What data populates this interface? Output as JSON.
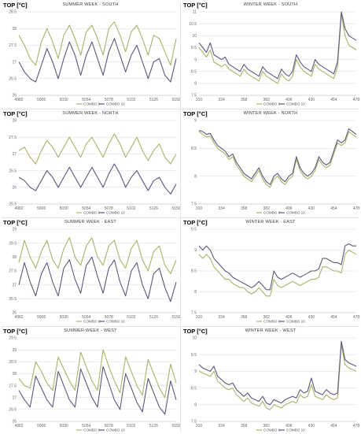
{
  "chart_data": [
    {
      "type": "line",
      "ylabel": "TOP [°C]",
      "title": "SUMMER WEEK - SOUTH",
      "xticks": [
        "4982",
        "5006",
        "5030",
        "5054",
        "5078",
        "5102",
        "5126",
        "5150"
      ],
      "ylim": [
        26,
        28.5
      ],
      "yticks": [
        "26",
        "26.5",
        "27",
        "27.5",
        "28",
        "28.5"
      ],
      "x": [
        4982,
        4988,
        4994,
        5000,
        5006,
        5012,
        5018,
        5024,
        5030,
        5036,
        5042,
        5048,
        5054,
        5060,
        5066,
        5072,
        5078,
        5084,
        5090,
        5096,
        5102,
        5108,
        5114,
        5120,
        5126,
        5132,
        5138,
        5144,
        5150
      ],
      "series": [
        {
          "name": "COMBO 9",
          "color": "#a9b36a",
          "values": [
            27.8,
            27.5,
            27.1,
            26.9,
            27.6,
            28.0,
            27.6,
            27.1,
            27.8,
            28.1,
            27.7,
            27.2,
            27.9,
            28.1,
            27.7,
            27.2,
            28.0,
            28.2,
            27.8,
            27.3,
            27.9,
            28.1,
            27.7,
            27.2,
            27.8,
            27.7,
            27.3,
            26.9,
            27.7
          ]
        },
        {
          "name": "COMBO 10",
          "color": "#5a587c",
          "values": [
            27.0,
            26.7,
            26.5,
            26.4,
            26.9,
            27.4,
            27.0,
            26.5,
            27.1,
            27.6,
            27.2,
            26.6,
            27.2,
            27.6,
            27.1,
            26.6,
            27.3,
            27.7,
            27.2,
            26.7,
            27.2,
            27.5,
            27.0,
            26.5,
            27.0,
            27.1,
            26.6,
            26.4,
            27.1
          ]
        }
      ],
      "legend_position": "bottom"
    },
    {
      "type": "line",
      "ylabel": "TOP [°C]",
      "title": "WINTER WEEK - SOUTH",
      "xticks": [
        "310",
        "334",
        "358",
        "382",
        "406",
        "430",
        "454",
        "478"
      ],
      "ylim": [
        7.5,
        11
      ],
      "yticks": [
        "7.5",
        "8",
        "8.5",
        "9",
        "9.5",
        "10",
        "10.5",
        "11"
      ],
      "x": [
        310,
        314,
        318,
        322,
        326,
        330,
        334,
        338,
        342,
        346,
        350,
        354,
        358,
        362,
        366,
        370,
        374,
        378,
        382,
        386,
        390,
        394,
        398,
        402,
        406,
        410,
        414,
        418,
        422,
        426,
        430,
        434,
        438,
        442,
        446,
        450,
        454,
        458,
        462,
        466,
        470,
        474,
        478
      ],
      "series": [
        {
          "name": "COMBO 9",
          "color": "#a9b36a",
          "values": [
            9.5,
            9.3,
            9.1,
            9.4,
            8.9,
            8.8,
            8.7,
            8.8,
            8.6,
            8.5,
            8.4,
            8.3,
            8.6,
            8.4,
            8.3,
            8.2,
            8.1,
            8.5,
            8.3,
            8.2,
            8.1,
            8.0,
            8.4,
            8.2,
            8.1,
            8.3,
            9.0,
            8.7,
            8.5,
            8.4,
            8.3,
            8.8,
            8.6,
            8.5,
            8.4,
            8.3,
            8.2,
            8.7,
            10.9,
            10.0,
            9.6,
            9.5,
            9.4
          ]
        },
        {
          "name": "COMBO 10",
          "color": "#5a587c",
          "values": [
            9.7,
            9.5,
            9.3,
            9.7,
            9.2,
            9.1,
            9.0,
            9.1,
            8.8,
            8.7,
            8.6,
            8.5,
            8.8,
            8.6,
            8.5,
            8.4,
            8.3,
            8.7,
            8.5,
            8.4,
            8.3,
            8.2,
            8.6,
            8.4,
            8.3,
            8.5,
            9.2,
            8.9,
            8.7,
            8.6,
            8.5,
            9.0,
            8.8,
            8.7,
            8.6,
            8.5,
            8.4,
            8.9,
            11.0,
            10.3,
            10.0,
            9.9,
            9.8
          ]
        }
      ],
      "legend_position": "bottom"
    },
    {
      "type": "line",
      "ylabel": "TOP [°C]",
      "title": "SUMMER WEEK - NORTH",
      "xticks": [
        "4982",
        "5006",
        "5030",
        "5054",
        "5078",
        "5102",
        "5126",
        "5150"
      ],
      "ylim": [
        25.5,
        28
      ],
      "yticks": [
        "25.5",
        "26",
        "26.5",
        "27",
        "27.5",
        "28"
      ],
      "x": [
        4982,
        4988,
        4994,
        5000,
        5006,
        5012,
        5018,
        5024,
        5030,
        5036,
        5042,
        5048,
        5054,
        5060,
        5066,
        5072,
        5078,
        5084,
        5090,
        5096,
        5102,
        5108,
        5114,
        5120,
        5126,
        5132,
        5138,
        5144,
        5150
      ],
      "series": [
        {
          "name": "COMBO 9",
          "color": "#a9b36a",
          "values": [
            27.1,
            27.2,
            26.9,
            26.7,
            27.1,
            27.4,
            27.2,
            26.9,
            27.2,
            27.5,
            27.2,
            26.9,
            27.3,
            27.5,
            27.2,
            26.9,
            27.3,
            27.6,
            27.3,
            26.9,
            27.2,
            27.5,
            27.1,
            26.8,
            27.1,
            27.3,
            26.9,
            26.7,
            27.0
          ]
        },
        {
          "name": "COMBO 10",
          "color": "#5a587c",
          "values": [
            26.3,
            26.2,
            26.0,
            25.9,
            26.2,
            26.5,
            26.3,
            26.0,
            26.3,
            26.6,
            26.3,
            26.0,
            26.3,
            26.6,
            26.3,
            26.0,
            26.4,
            26.7,
            26.4,
            26.0,
            26.3,
            26.5,
            26.2,
            25.9,
            26.2,
            26.3,
            26.0,
            25.8,
            26.1
          ]
        }
      ],
      "legend_position": "bottom"
    },
    {
      "type": "line",
      "ylabel": "TOP [°C]",
      "title": "WINTER WEEK - NORTH",
      "xticks": [
        "310",
        "334",
        "358",
        "382",
        "406",
        "430",
        "454",
        "478"
      ],
      "ylim": [
        7.5,
        9
      ],
      "yticks": [
        "7.5",
        "8",
        "8.5",
        "9"
      ],
      "x": [
        310,
        314,
        318,
        322,
        326,
        330,
        334,
        338,
        342,
        346,
        350,
        354,
        358,
        362,
        366,
        370,
        374,
        378,
        382,
        386,
        390,
        394,
        398,
        402,
        406,
        410,
        414,
        418,
        422,
        426,
        430,
        434,
        438,
        442,
        446,
        450,
        454,
        458,
        462,
        466,
        470,
        474,
        478
      ],
      "series": [
        {
          "name": "COMBO 9",
          "color": "#a9b36a",
          "values": [
            8.8,
            8.75,
            8.7,
            8.72,
            8.6,
            8.5,
            8.45,
            8.4,
            8.3,
            8.35,
            8.2,
            8.1,
            8.0,
            7.95,
            7.9,
            8.0,
            8.1,
            7.95,
            7.85,
            7.8,
            7.95,
            8.0,
            7.9,
            7.85,
            7.95,
            8.0,
            8.3,
            8.1,
            8.0,
            7.95,
            8.0,
            8.1,
            8.3,
            8.2,
            8.15,
            8.2,
            8.4,
            8.6,
            8.55,
            8.6,
            8.8,
            8.75,
            8.7
          ]
        },
        {
          "name": "COMBO 10",
          "color": "#5a587c",
          "values": [
            8.82,
            8.8,
            8.75,
            8.77,
            8.65,
            8.55,
            8.5,
            8.45,
            8.35,
            8.4,
            8.25,
            8.15,
            8.05,
            8.0,
            7.95,
            8.05,
            8.15,
            8.0,
            7.9,
            7.85,
            8.0,
            8.05,
            7.95,
            7.9,
            8.0,
            8.05,
            8.35,
            8.15,
            8.05,
            8.0,
            8.05,
            8.15,
            8.35,
            8.25,
            8.2,
            8.25,
            8.45,
            8.65,
            8.6,
            8.65,
            8.85,
            8.8,
            8.75
          ]
        }
      ],
      "legend_position": "bottom"
    },
    {
      "type": "line",
      "ylabel": "TOP [°C]",
      "title": "SUMMER WEEK - EAST",
      "xticks": [
        "4982",
        "5006",
        "5030",
        "5054",
        "5078",
        "5102",
        "5126",
        "5150"
      ],
      "ylim": [
        26,
        29
      ],
      "yticks": [
        "26",
        "26.5",
        "27",
        "27.5",
        "28",
        "28.5",
        "29"
      ],
      "x": [
        4982,
        4988,
        4994,
        5000,
        5006,
        5012,
        5018,
        5024,
        5030,
        5036,
        5042,
        5048,
        5054,
        5060,
        5066,
        5072,
        5078,
        5084,
        5090,
        5096,
        5102,
        5108,
        5114,
        5120,
        5126,
        5132,
        5138,
        5144,
        5150
      ],
      "series": [
        {
          "name": "COMBO 9",
          "color": "#a9b36a",
          "values": [
            27.8,
            28.6,
            28.0,
            27.6,
            28.2,
            28.6,
            27.9,
            27.6,
            28.3,
            28.7,
            28.0,
            27.7,
            28.4,
            28.7,
            28.0,
            27.7,
            28.4,
            28.6,
            27.9,
            27.6,
            28.3,
            28.6,
            27.9,
            27.5,
            28.2,
            28.4,
            27.7,
            27.4,
            27.9
          ]
        },
        {
          "name": "COMBO 10",
          "color": "#5a587c",
          "values": [
            27.0,
            27.8,
            27.1,
            26.6,
            27.4,
            27.8,
            27.1,
            26.6,
            27.6,
            27.9,
            27.2,
            26.7,
            27.7,
            28.0,
            27.3,
            26.7,
            27.6,
            27.9,
            27.1,
            26.6,
            27.5,
            27.8,
            27.0,
            26.5,
            27.4,
            27.6,
            26.9,
            26.4,
            27.1
          ]
        }
      ],
      "legend_position": "bottom"
    },
    {
      "type": "line",
      "ylabel": "TOP [°C]",
      "title": "WINTER WEEK - EAST",
      "xticks": [
        "310",
        "334",
        "358",
        "382",
        "406",
        "430",
        "454",
        "478"
      ],
      "ylim": [
        7.5,
        9.5
      ],
      "yticks": [
        "7.5",
        "8",
        "8.5",
        "9",
        "9.5"
      ],
      "x": [
        310,
        314,
        318,
        322,
        326,
        330,
        334,
        338,
        342,
        346,
        350,
        354,
        358,
        362,
        366,
        370,
        374,
        378,
        382,
        386,
        390,
        394,
        398,
        402,
        406,
        410,
        414,
        418,
        422,
        426,
        430,
        434,
        438,
        442,
        446,
        450,
        454,
        458,
        462,
        466,
        470,
        474,
        478
      ],
      "series": [
        {
          "name": "COMBO 9",
          "color": "#a9b36a",
          "values": [
            8.9,
            8.8,
            8.9,
            8.8,
            8.6,
            8.5,
            8.4,
            8.3,
            8.3,
            8.2,
            8.15,
            8.1,
            8.1,
            8.0,
            7.95,
            8.0,
            8.1,
            8.0,
            7.9,
            7.9,
            8.3,
            8.15,
            8.1,
            8.15,
            8.2,
            8.25,
            8.2,
            8.15,
            8.2,
            8.25,
            8.3,
            8.3,
            8.35,
            8.6,
            8.6,
            8.55,
            8.5,
            8.5,
            8.45,
            8.9,
            9.0,
            8.95,
            8.9
          ]
        },
        {
          "name": "COMBO 10",
          "color": "#5a587c",
          "values": [
            9.1,
            9.0,
            9.1,
            9.0,
            8.8,
            8.7,
            8.6,
            8.5,
            8.45,
            8.35,
            8.3,
            8.25,
            8.2,
            8.15,
            8.1,
            8.15,
            8.25,
            8.15,
            8.05,
            8.05,
            8.5,
            8.35,
            8.3,
            8.35,
            8.4,
            8.45,
            8.4,
            8.35,
            8.4,
            8.45,
            8.5,
            8.5,
            8.55,
            8.8,
            8.8,
            8.75,
            8.7,
            8.7,
            8.65,
            9.1,
            9.15,
            9.1,
            9.1
          ]
        }
      ],
      "legend_position": "bottom"
    },
    {
      "type": "line",
      "ylabel": "TOP [°C]",
      "title": "SUMMER WEEK - WEST",
      "xticks": [
        "4982",
        "5006",
        "5030",
        "5054",
        "5078",
        "5102",
        "5126",
        "5150"
      ],
      "ylim": [
        26,
        29.5
      ],
      "yticks": [
        "26",
        "26.5",
        "27",
        "27.5",
        "28",
        "28.5",
        "29",
        "29.5"
      ],
      "x": [
        4982,
        4988,
        4994,
        5000,
        5006,
        5012,
        5018,
        5024,
        5030,
        5036,
        5042,
        5048,
        5054,
        5060,
        5066,
        5072,
        5078,
        5084,
        5090,
        5096,
        5102,
        5108,
        5114,
        5120,
        5126,
        5132,
        5138,
        5144,
        5150
      ],
      "series": [
        {
          "name": "COMBO 9",
          "color": "#a9b36a",
          "values": [
            27.8,
            27.5,
            27.4,
            28.5,
            28.1,
            27.6,
            27.3,
            28.7,
            28.2,
            27.7,
            27.3,
            28.9,
            28.3,
            27.7,
            27.3,
            29.0,
            28.3,
            27.7,
            27.2,
            28.7,
            28.1,
            27.5,
            27.1,
            28.6,
            28.0,
            27.4,
            27.0,
            28.4,
            27.6
          ]
        },
        {
          "name": "COMBO 10",
          "color": "#5a587c",
          "values": [
            27.3,
            26.9,
            26.6,
            27.9,
            27.4,
            26.9,
            26.6,
            28.1,
            27.5,
            26.9,
            26.6,
            28.2,
            27.6,
            27.0,
            26.6,
            28.3,
            27.6,
            26.9,
            26.5,
            28.0,
            27.4,
            26.8,
            26.4,
            27.8,
            27.2,
            26.6,
            26.3,
            27.7,
            26.9
          ]
        }
      ],
      "legend_position": "bottom"
    },
    {
      "type": "line",
      "ylabel": "TOP [°C]",
      "title": "WINTER WEEK - WEST",
      "xticks": [
        "310",
        "334",
        "358",
        "382",
        "406",
        "430",
        "454",
        "478"
      ],
      "ylim": [
        7.5,
        10
      ],
      "yticks": [
        "7.5",
        "8",
        "8.5",
        "9",
        "9.5",
        "10"
      ],
      "x": [
        310,
        314,
        318,
        322,
        326,
        330,
        334,
        338,
        342,
        346,
        350,
        354,
        358,
        362,
        366,
        370,
        374,
        378,
        382,
        386,
        390,
        394,
        398,
        402,
        406,
        410,
        414,
        418,
        422,
        426,
        430,
        434,
        438,
        442,
        446,
        450,
        454,
        458,
        462,
        466,
        470,
        474,
        478
      ],
      "series": [
        {
          "name": "COMBO 9",
          "color": "#a9b36a",
          "values": [
            9.0,
            8.95,
            8.9,
            8.85,
            9.0,
            8.7,
            8.6,
            8.5,
            8.45,
            8.5,
            8.3,
            8.2,
            8.1,
            8.2,
            8.05,
            8.0,
            7.95,
            8.1,
            7.9,
            7.85,
            8.0,
            7.95,
            7.9,
            8.0,
            8.05,
            8.1,
            8.05,
            8.3,
            8.2,
            8.25,
            8.6,
            8.25,
            8.2,
            8.15,
            8.3,
            8.2,
            8.15,
            8.2,
            9.8,
            9.2,
            9.1,
            9.05,
            9.0
          ]
        },
        {
          "name": "COMBO 10",
          "color": "#5a587c",
          "values": [
            9.2,
            9.1,
            9.05,
            9.0,
            9.15,
            8.85,
            8.75,
            8.65,
            8.6,
            8.65,
            8.45,
            8.35,
            8.25,
            8.35,
            8.2,
            8.15,
            8.1,
            8.25,
            8.05,
            8.0,
            8.15,
            8.1,
            8.05,
            8.15,
            8.2,
            8.25,
            8.2,
            8.45,
            8.35,
            8.4,
            8.8,
            8.4,
            8.35,
            8.3,
            8.45,
            8.35,
            8.3,
            8.35,
            9.9,
            9.35,
            9.25,
            9.2,
            9.15
          ]
        }
      ],
      "legend_position": "bottom"
    }
  ]
}
